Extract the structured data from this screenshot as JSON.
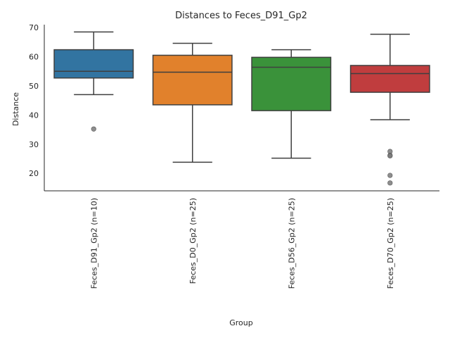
{
  "chart_data": {
    "type": "box",
    "title": "Distances to Feces_D91_Gp2",
    "xlabel": "Group",
    "ylabel": "Distance",
    "ylim": [
      14,
      71
    ],
    "yticks": [
      20,
      30,
      40,
      50,
      60,
      70
    ],
    "grid": false,
    "groups": [
      {
        "label": "Feces_D91_Gp2 (n=10)",
        "color": "#3274a1",
        "whisker_low": 47.0,
        "q1": 52.7,
        "median": 55.0,
        "q3": 62.4,
        "whisker_high": 68.5,
        "outliers": [
          35.2
        ]
      },
      {
        "label": "Feces_D0_Gp2 (n=25)",
        "color": "#e1812c",
        "whisker_low": 23.8,
        "q1": 43.5,
        "median": 54.7,
        "q3": 60.5,
        "whisker_high": 64.6,
        "outliers": []
      },
      {
        "label": "Feces_D56_Gp2 (n=25)",
        "color": "#3a923a",
        "whisker_low": 25.2,
        "q1": 41.5,
        "median": 56.4,
        "q3": 59.8,
        "whisker_high": 62.4,
        "outliers": []
      },
      {
        "label": "Feces_D70_Gp2 (n=25)",
        "color": "#c03d3e",
        "whisker_low": 38.4,
        "q1": 47.8,
        "median": 54.2,
        "q3": 57.0,
        "whisker_high": 67.7,
        "outliers": [
          27.5,
          26.2,
          26.0,
          19.3,
          16.7
        ]
      }
    ]
  }
}
